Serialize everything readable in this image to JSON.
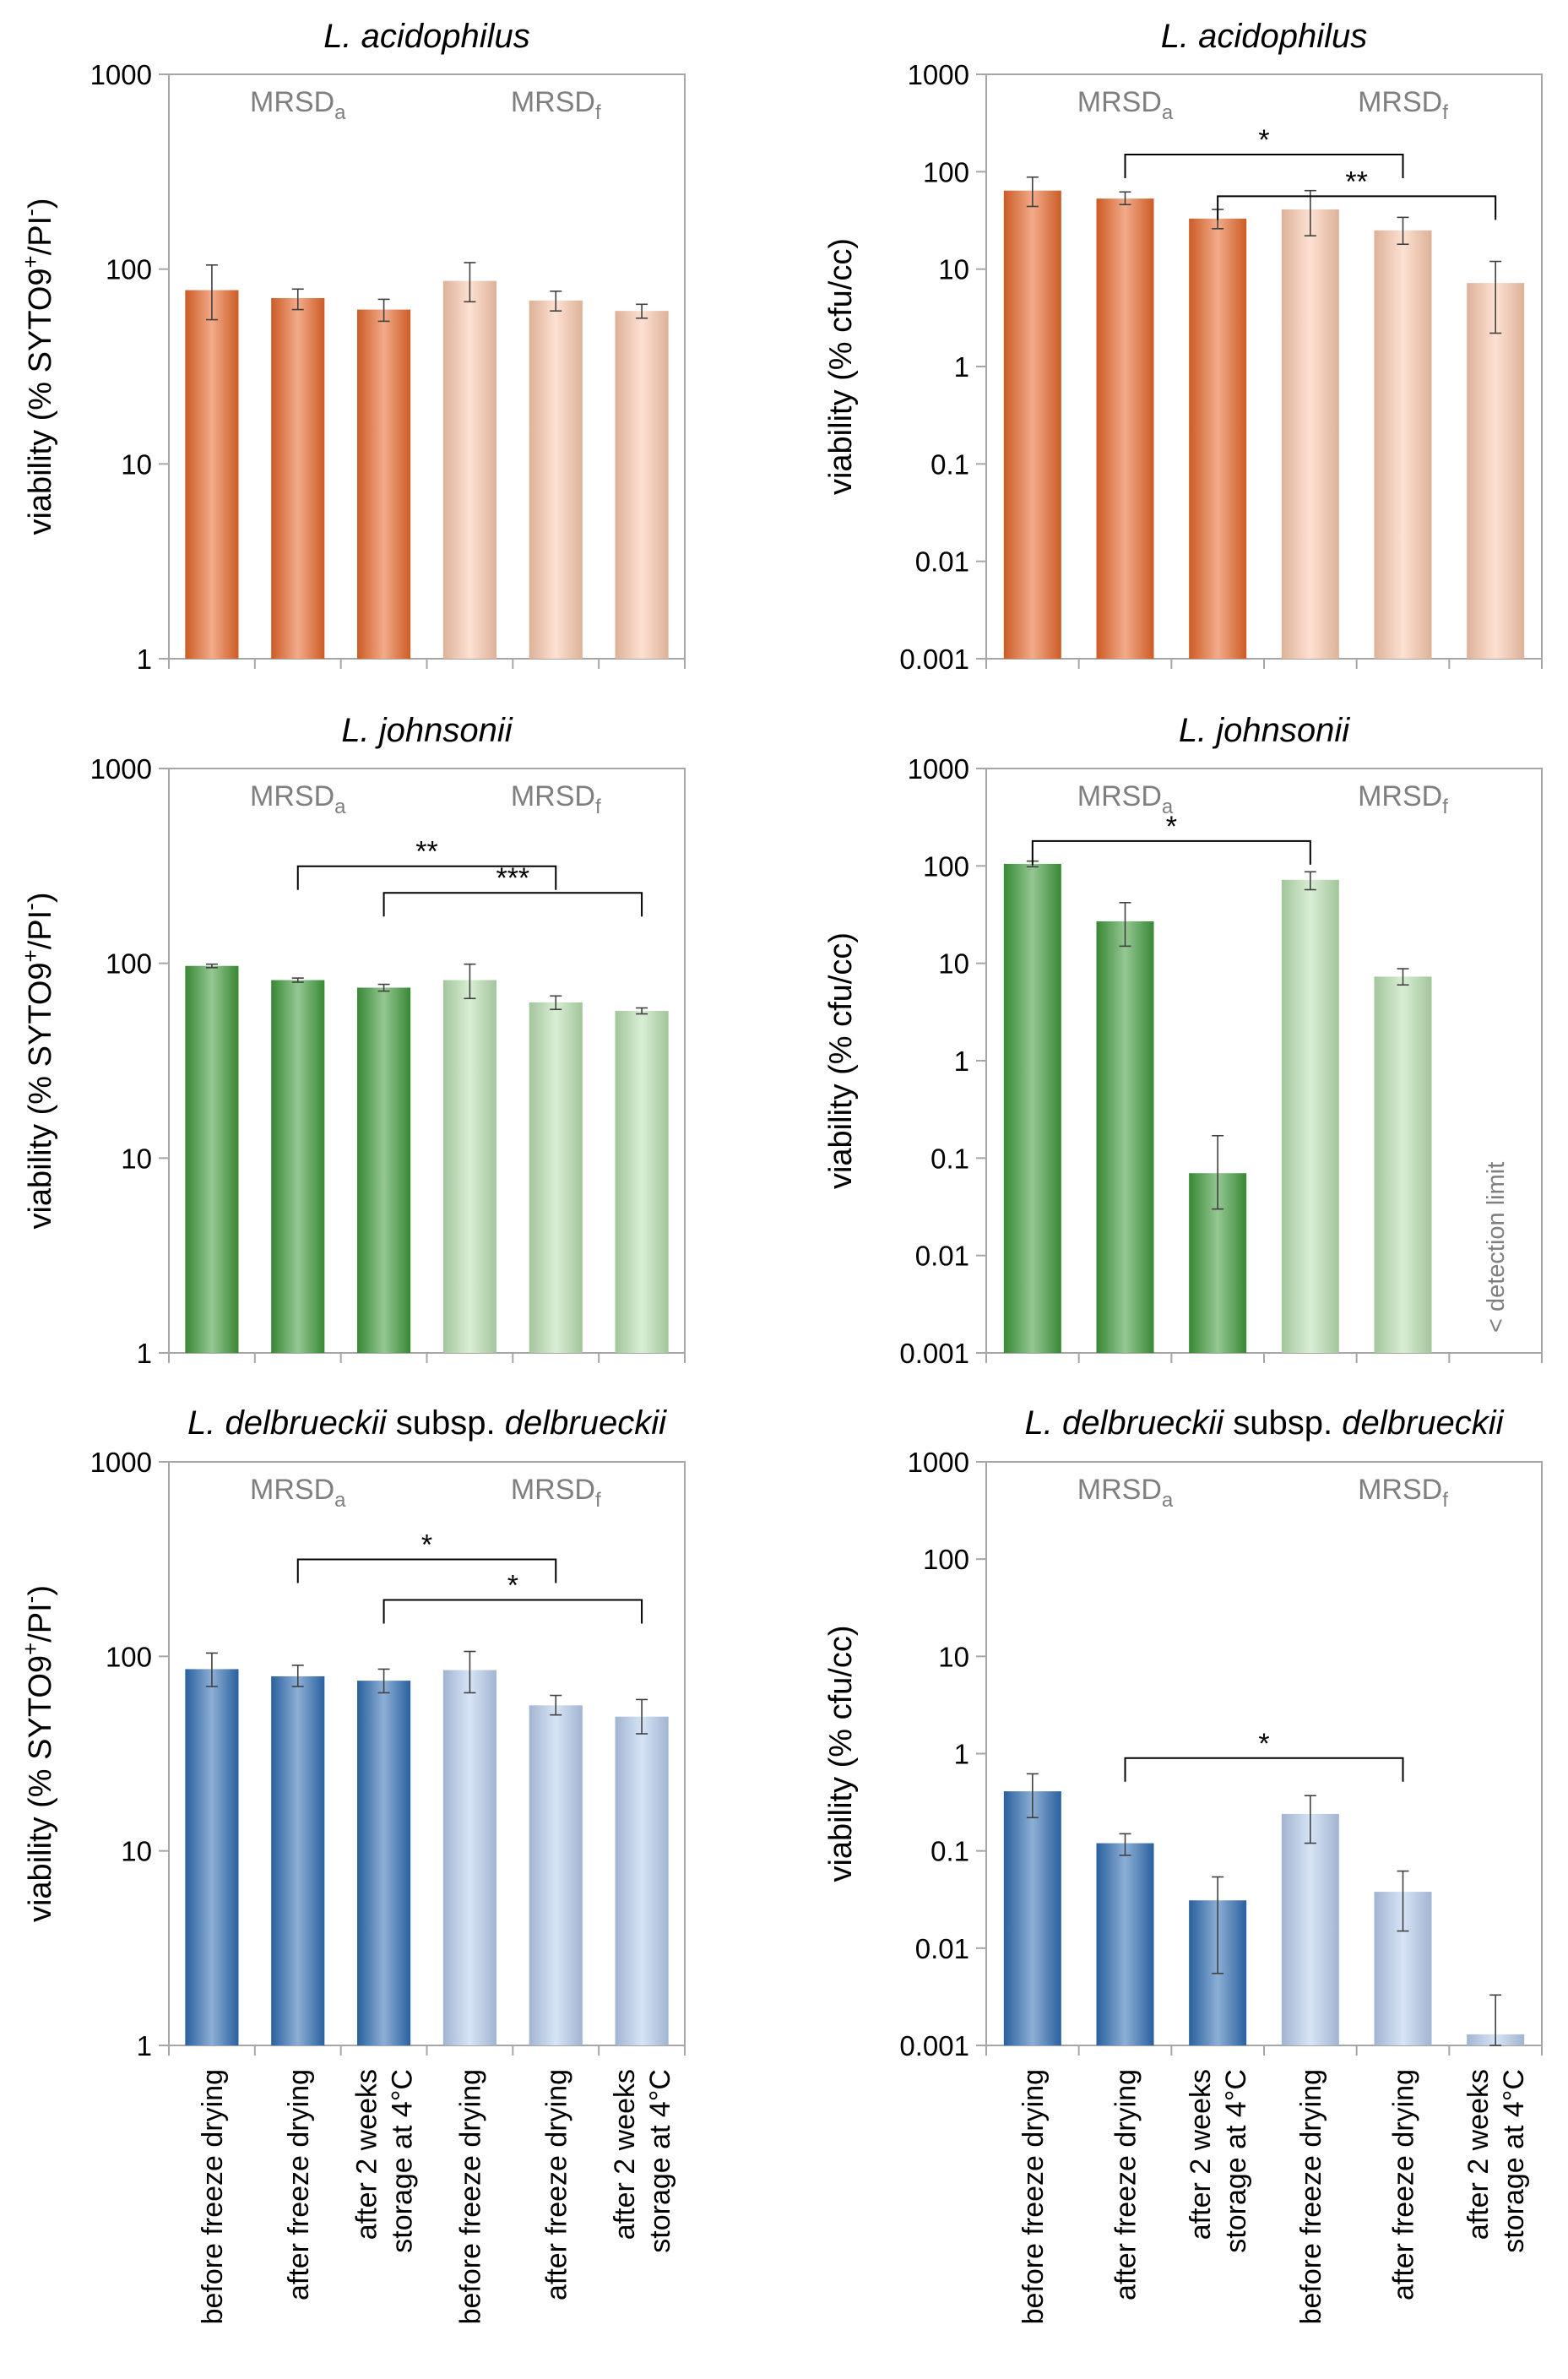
{
  "figure_description_labels": {
    "group_a_base": "MRSD",
    "group_a_sub": "a",
    "group_f_base": "MRSD",
    "group_f_sub": "f",
    "detection_limit": "< detection limit"
  },
  "x_categories": [
    [
      "before freeze drying"
    ],
    [
      "after freeze drying"
    ],
    [
      "after 2 weeks",
      "storage at 4°C"
    ],
    [
      "before freeze drying"
    ],
    [
      "after freeze drying"
    ],
    [
      "after 2 weeks",
      "storage at 4°C"
    ]
  ],
  "colors": {
    "orange_dark": "#e8672a",
    "orange_light": "#fbc9ad",
    "green_dark": "#3e9a3b",
    "green_light": "#b8e0b0",
    "blue_dark": "#2f6db3",
    "blue_light": "#b7cdee",
    "axis": "#a6a6a6",
    "group_label": "#7f7f7f"
  },
  "chart_data": [
    {
      "type": "bar",
      "title_italic": "L. acidophilus",
      "title_rest": "",
      "ylabel_prefix": "viability (% SYTO9",
      "ylabel_sup1": "+",
      "ylabel_mid": "/PI",
      "ylabel_sup2": "-",
      "ylabel_suffix": ")",
      "yscale": "log",
      "ylim": [
        1,
        1000
      ],
      "yticks": [
        "1",
        "10",
        "100",
        "1000"
      ],
      "colors": [
        "orange_dark",
        "orange_dark",
        "orange_dark",
        "orange_light",
        "orange_light",
        "orange_light"
      ],
      "values": [
        78,
        71,
        62,
        87,
        69,
        61
      ],
      "err_low": [
        55,
        62,
        54,
        68,
        61,
        56
      ],
      "err_high": [
        105,
        79,
        70,
        108,
        77,
        66
      ],
      "significance": []
    },
    {
      "type": "bar",
      "title_italic": "L. acidophilus",
      "title_rest": "",
      "ylabel_prefix": "viability (% cfu/cc)",
      "yscale": "log",
      "ylim": [
        0.001,
        1000
      ],
      "yticks": [
        "0.001",
        "0.01",
        "0.1",
        "1",
        "10",
        "100",
        "1000"
      ],
      "colors": [
        "orange_dark",
        "orange_dark",
        "orange_dark",
        "orange_light",
        "orange_light",
        "orange_light"
      ],
      "values": [
        64,
        53,
        33,
        41,
        25,
        7.2
      ],
      "err_low": [
        44,
        46,
        26,
        22,
        18,
        2.2
      ],
      "err_high": [
        88,
        62,
        41,
        64,
        34,
        12
      ],
      "significance": [
        {
          "from": 1,
          "to": 4,
          "y": 150,
          "label": "*"
        },
        {
          "from": 2,
          "to": 5,
          "y": 56,
          "label": "**"
        }
      ]
    },
    {
      "type": "bar",
      "title_italic": "L. johnsonii",
      "title_rest": "",
      "ylabel_prefix": "viability (% SYTO9",
      "ylabel_sup1": "+",
      "ylabel_mid": "/PI",
      "ylabel_sup2": "-",
      "ylabel_suffix": ")",
      "yscale": "log",
      "ylim": [
        1,
        1000
      ],
      "yticks": [
        "1",
        "10",
        "100",
        "1000"
      ],
      "colors": [
        "green_dark",
        "green_dark",
        "green_dark",
        "green_light",
        "green_light",
        "green_light"
      ],
      "values": [
        97,
        82,
        75,
        82,
        63,
        57
      ],
      "err_low": [
        95,
        80,
        72,
        66,
        58,
        55
      ],
      "err_high": [
        99,
        84,
        78,
        99,
        68,
        59
      ],
      "significance": [
        {
          "from": 1,
          "to": 4,
          "y": 315,
          "label": "**"
        },
        {
          "from": 2,
          "to": 5,
          "y": 230,
          "label": "***"
        }
      ]
    },
    {
      "type": "bar",
      "title_italic": "L. johnsonii",
      "title_rest": "",
      "ylabel_prefix": "viability (% cfu/cc)",
      "yscale": "log",
      "ylim": [
        0.001,
        1000
      ],
      "yticks": [
        "0.001",
        "0.01",
        "0.1",
        "1",
        "10",
        "100",
        "1000"
      ],
      "colors": [
        "green_dark",
        "green_dark",
        "green_dark",
        "green_light",
        "green_light",
        "missing"
      ],
      "values": [
        105,
        27,
        0.07,
        72,
        7.3,
        null
      ],
      "err_low": [
        98,
        15,
        0.03,
        57,
        6,
        null
      ],
      "err_high": [
        112,
        42,
        0.17,
        87,
        8.8,
        null
      ],
      "detection_limit_index": 5,
      "significance": [
        {
          "from": 0,
          "to": 3,
          "y": 180,
          "label": "*"
        }
      ]
    },
    {
      "type": "bar",
      "title_italic": "L. delbrueckii",
      "title_rest": " subsp. ",
      "title_italic2": "delbrueckii",
      "ylabel_prefix": "viability (% SYTO9",
      "ylabel_sup1": "+",
      "ylabel_mid": "/PI",
      "ylabel_sup2": "-",
      "ylabel_suffix": ")",
      "yscale": "log",
      "ylim": [
        1,
        1000
      ],
      "yticks": [
        "1",
        "10",
        "100",
        "1000"
      ],
      "colors": [
        "blue_dark",
        "blue_dark",
        "blue_dark",
        "blue_light",
        "blue_light",
        "blue_light"
      ],
      "values": [
        86,
        79,
        75,
        85,
        56,
        49
      ],
      "err_low": [
        70,
        70,
        65,
        65,
        50,
        40
      ],
      "err_high": [
        104,
        90,
        86,
        106,
        63,
        60
      ],
      "significance": [
        {
          "from": 1,
          "to": 4,
          "y": 315,
          "label": "*"
        },
        {
          "from": 2,
          "to": 5,
          "y": 195,
          "label": "*"
        }
      ]
    },
    {
      "type": "bar",
      "title_italic": "L. delbrueckii",
      "title_rest": " subsp. ",
      "title_italic2": "delbrueckii",
      "ylabel_prefix": "viability (% cfu/cc)",
      "yscale": "log",
      "ylim": [
        0.001,
        1000
      ],
      "yticks": [
        "0.001",
        "0.01",
        "0.1",
        "1",
        "10",
        "100",
        "1000"
      ],
      "colors": [
        "blue_dark",
        "blue_dark",
        "blue_dark",
        "blue_light",
        "blue_light",
        "blue_light"
      ],
      "values": [
        0.41,
        0.12,
        0.031,
        0.24,
        0.038,
        0.0013
      ],
      "err_low": [
        0.22,
        0.09,
        0.0055,
        0.12,
        0.015,
        0.001
      ],
      "err_high": [
        0.62,
        0.15,
        0.054,
        0.37,
        0.062,
        0.0033
      ],
      "significance": [
        {
          "from": 1,
          "to": 4,
          "y": 0.9,
          "label": "*"
        }
      ]
    }
  ]
}
